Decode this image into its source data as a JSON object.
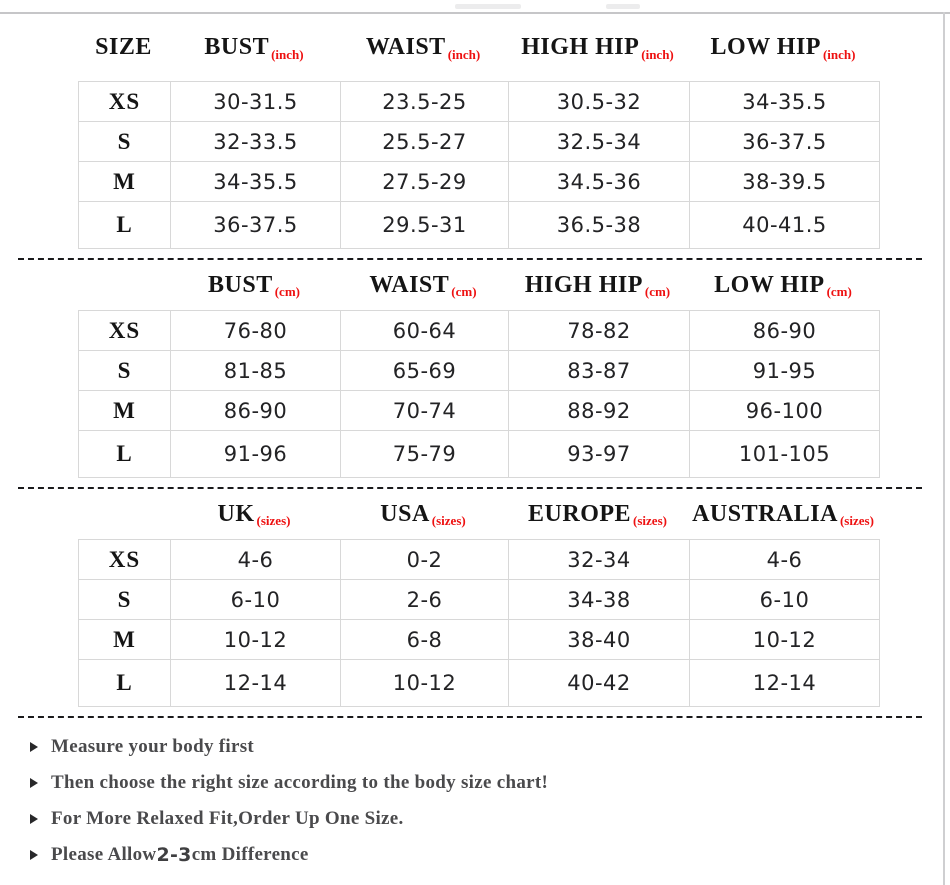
{
  "colors": {
    "accent_red": "#ee1111",
    "header_text": "#151515",
    "value_text": "#232325",
    "note_text": "#4a4a4c",
    "grid_border": "#d8d8d8",
    "dashed_line": "#1a1a1c",
    "frame_line": "#c6c6c8"
  },
  "tables": [
    {
      "id": "inch",
      "headers": [
        {
          "label": "SIZE",
          "sub": ""
        },
        {
          "label": "BUST",
          "sub": "(inch)"
        },
        {
          "label": "WAIST",
          "sub": "(inch)"
        },
        {
          "label": "HIGH HIP",
          "sub": "(inch)"
        },
        {
          "label": "LOW HIP",
          "sub": "(inch)"
        }
      ],
      "rows": [
        {
          "size": "XS",
          "values": [
            "30-31.5",
            "23.5-25",
            "30.5-32",
            "34-35.5"
          ]
        },
        {
          "size": "S",
          "values": [
            "32-33.5",
            "25.5-27",
            "32.5-34",
            "36-37.5"
          ]
        },
        {
          "size": "M",
          "values": [
            "34-35.5",
            "27.5-29",
            "34.5-36",
            "38-39.5"
          ]
        },
        {
          "size": "L",
          "values": [
            "36-37.5",
            "29.5-31",
            "36.5-38",
            "40-41.5"
          ]
        }
      ]
    },
    {
      "id": "cm",
      "headers": [
        {
          "label": "",
          "sub": ""
        },
        {
          "label": "BUST",
          "sub": "(cm)"
        },
        {
          "label": "WAIST",
          "sub": "(cm)"
        },
        {
          "label": "HIGH HIP",
          "sub": "(cm)"
        },
        {
          "label": "LOW HIP",
          "sub": "(cm)"
        }
      ],
      "rows": [
        {
          "size": "XS",
          "values": [
            "76-80",
            "60-64",
            "78-82",
            "86-90"
          ]
        },
        {
          "size": "S",
          "values": [
            "81-85",
            "65-69",
            "83-87",
            "91-95"
          ]
        },
        {
          "size": "M",
          "values": [
            "86-90",
            "70-74",
            "88-92",
            "96-100"
          ]
        },
        {
          "size": "L",
          "values": [
            "91-96",
            "75-79",
            "93-97",
            "101-105"
          ]
        }
      ]
    },
    {
      "id": "international",
      "headers": [
        {
          "label": "",
          "sub": ""
        },
        {
          "label": "UK ",
          "sub": "(sizes)"
        },
        {
          "label": "USA",
          "sub": "(sizes)"
        },
        {
          "label": "EUROPE",
          "sub": "(sizes)"
        },
        {
          "label": "AUSTRALIA",
          "sub": "(sizes)"
        }
      ],
      "rows": [
        {
          "size": "XS",
          "values": [
            "4-6",
            "0-2",
            "32-34",
            "4-6"
          ]
        },
        {
          "size": "S",
          "values": [
            "6-10",
            "2-6",
            "34-38",
            "6-10"
          ]
        },
        {
          "size": "M",
          "values": [
            "10-12",
            "6-8",
            "38-40",
            "10-12"
          ]
        },
        {
          "size": "L",
          "values": [
            "12-14",
            "10-12",
            "40-42",
            "12-14"
          ]
        }
      ]
    }
  ],
  "notes": [
    {
      "segments": [
        {
          "t": "Measure your body first"
        }
      ]
    },
    {
      "segments": [
        {
          "t": "Then choose the right size according to the body size chart!"
        }
      ]
    },
    {
      "segments": [
        {
          "t": "For More Relaxed Fit,Order Up One Size."
        }
      ]
    },
    {
      "segments": [
        {
          "t": "Please Allow "
        },
        {
          "t": "2-3",
          "sans": true
        },
        {
          "t": "cm Difference"
        }
      ]
    }
  ],
  "chart_data": [
    {
      "type": "table",
      "title": "Body measurements (inch)",
      "columns": [
        "SIZE",
        "BUST (inch)",
        "WAIST (inch)",
        "HIGH HIP (inch)",
        "LOW HIP (inch)"
      ],
      "rows": [
        [
          "XS",
          "30-31.5",
          "23.5-25",
          "30.5-32",
          "34-35.5"
        ],
        [
          "S",
          "32-33.5",
          "25.5-27",
          "32.5-34",
          "36-37.5"
        ],
        [
          "M",
          "34-35.5",
          "27.5-29",
          "34.5-36",
          "38-39.5"
        ],
        [
          "L",
          "36-37.5",
          "29.5-31",
          "36.5-38",
          "40-41.5"
        ]
      ]
    },
    {
      "type": "table",
      "title": "Body measurements (cm)",
      "columns": [
        "SIZE",
        "BUST (cm)",
        "WAIST (cm)",
        "HIGH HIP (cm)",
        "LOW HIP (cm)"
      ],
      "rows": [
        [
          "XS",
          "76-80",
          "60-64",
          "78-82",
          "86-90"
        ],
        [
          "S",
          "81-85",
          "65-69",
          "83-87",
          "91-95"
        ],
        [
          "M",
          "86-90",
          "70-74",
          "88-92",
          "96-100"
        ],
        [
          "L",
          "91-96",
          "75-79",
          "93-97",
          "101-105"
        ]
      ]
    },
    {
      "type": "table",
      "title": "International size conversion",
      "columns": [
        "SIZE",
        "UK (sizes)",
        "USA (sizes)",
        "EUROPE (sizes)",
        "AUSTRALIA (sizes)"
      ],
      "rows": [
        [
          "XS",
          "4-6",
          "0-2",
          "32-34",
          "4-6"
        ],
        [
          "S",
          "6-10",
          "2-6",
          "34-38",
          "6-10"
        ],
        [
          "M",
          "10-12",
          "6-8",
          "38-40",
          "10-12"
        ],
        [
          "L",
          "12-14",
          "10-12",
          "40-42",
          "12-14"
        ]
      ]
    }
  ]
}
